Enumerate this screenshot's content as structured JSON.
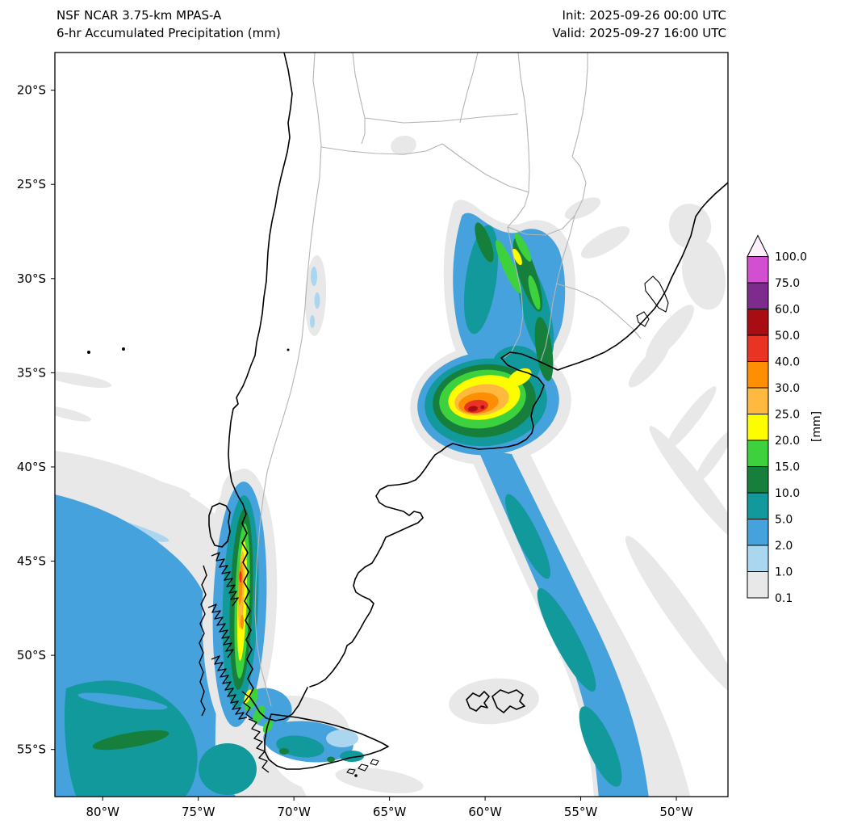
{
  "header": {
    "title_line1": "NSF NCAR 3.75-km MPAS-A",
    "title_line2": "6-hr Accumulated Precipitation (mm)",
    "init_time": "Init: 2025-09-26 00:00 UTC",
    "valid_time": "Valid: 2025-09-27 16:00 UTC"
  },
  "chart_data": {
    "type": "heatmap",
    "variant": "geographic precipitation forecast map",
    "model": "NSF NCAR 3.75-km MPAS-A",
    "field": "6-hr Accumulated Precipitation",
    "units": "mm",
    "init": "2025-09-26 00:00 UTC",
    "valid": "2025-09-27 16:00 UTC",
    "x_axis": {
      "ticks": [
        {
          "label": "80°W",
          "value": 80
        },
        {
          "label": "75°W",
          "value": 75
        },
        {
          "label": "70°W",
          "value": 70
        },
        {
          "label": "65°W",
          "value": 65
        },
        {
          "label": "60°W",
          "value": 60
        },
        {
          "label": "55°W",
          "value": 55
        },
        {
          "label": "50°W",
          "value": 50
        }
      ],
      "range_deg_west": [
        82.5,
        47.3
      ]
    },
    "y_axis": {
      "ticks": [
        {
          "label": "20°S",
          "value": 20
        },
        {
          "label": "25°S",
          "value": 25
        },
        {
          "label": "30°S",
          "value": 30
        },
        {
          "label": "35°S",
          "value": 35
        },
        {
          "label": "40°S",
          "value": 40
        },
        {
          "label": "45°S",
          "value": 45
        },
        {
          "label": "50°S",
          "value": 50
        },
        {
          "label": "55°S",
          "value": 55
        }
      ],
      "range_deg_south": [
        18,
        57.5
      ]
    },
    "colorbar": {
      "label": "[mm]",
      "orientation": "vertical-right",
      "levels": [
        0.1,
        1.0,
        2.0,
        5.0,
        10.0,
        15.0,
        20.0,
        25.0,
        30.0,
        40.0,
        50.0,
        60.0,
        75.0,
        100.0
      ],
      "levels_display": [
        "0.1",
        "1.0",
        "2.0",
        "5.0",
        "10.0",
        "15.0",
        "20.0",
        "25.0",
        "30.0",
        "40.0",
        "50.0",
        "60.0",
        "75.0",
        "100.0"
      ],
      "colors": [
        "#e8e8e8",
        "#aad6f0",
        "#45a2dc",
        "#12999b",
        "#157f3b",
        "#3ed13e",
        "#fdfd00",
        "#ffb93f",
        "#fe8f02",
        "#ea3423",
        "#a80d14",
        "#7e2b8e",
        "#d24fd2"
      ],
      "over_arrow_color": "#fdf0fd"
    },
    "map_colors": {
      "coast": "#000000",
      "border": "#b4b4b4",
      "bg": "#ffffff",
      "text": "#000000"
    },
    "map_region": "Southern South America: Chile, Argentina, Paraguay, Uruguay, southern Brazil, Falkland Islands, adjacent Pacific and Atlantic oceans",
    "features": [
      {
        "name": "central-argentina-mcs",
        "description": "Intense precipitation core over central-eastern Argentina",
        "approx_center": "60°W, 36.5°S",
        "peak_mm_range": "50-60"
      },
      {
        "name": "ne-argentina-band",
        "description": "North-south band from ~27°S down to the main core with embedded 15-25 mm streaks",
        "approx_center": "58.5°W, 31°S",
        "peak_mm_range": "20-25"
      },
      {
        "name": "southeast-atlantic-band",
        "description": "Long NW-SE band from the core toward the southeast corner of the domain",
        "approx_center": "55°W, 47°S",
        "peak_mm_range": "5-10"
      },
      {
        "name": "patagonian-andes-band",
        "description": "Narrow orographic band along the southern Chilean Andes ~43-53°S with 25-40 mm streaks",
        "approx_center": "72.5°W, 47°S",
        "peak_mm_range": "30-50"
      },
      {
        "name": "southeast-pacific-system",
        "description": "Broad maritime precipitation shield southwest of Chile with 5-10 mm core",
        "approx_center": "77°W, 53°S",
        "peak_mm_range": "10-15"
      },
      {
        "name": "tierra-del-fuego-cells",
        "description": "Scattered 2-15 mm cells along the southern tip of the continent",
        "approx_center": "68°W, 54.5°S",
        "peak_mm_range": "10-15"
      },
      {
        "name": "brazil-coast-streaks",
        "description": "Light 0.1-1 mm streaks along/offshore southern Brazil and Uruguay",
        "approx_center": "50°W, 30°S",
        "peak_mm_range": "0.1-1"
      },
      {
        "name": "andes-foothills-specks",
        "description": "Isolated 1-2 mm specks near the Andes foothills",
        "approx_center": "68.5°W, 30.5°S",
        "peak_mm_range": "1-2"
      }
    ]
  }
}
